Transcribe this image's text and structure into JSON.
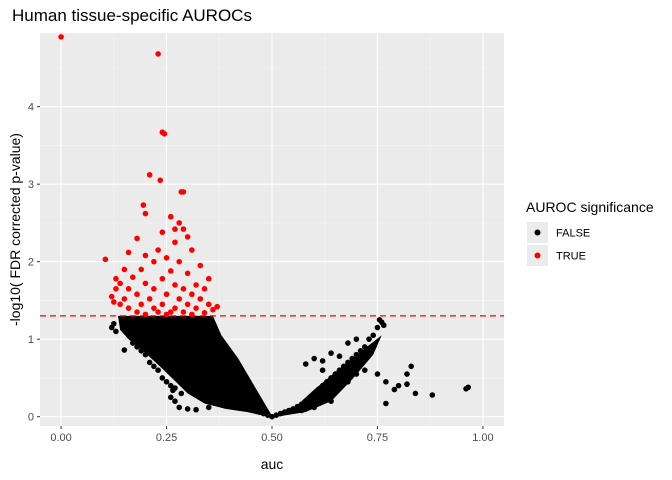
{
  "chart_data": {
    "type": "scatter",
    "title": "Human tissue-specific AUROCs",
    "xlabel": "auc",
    "ylabel": "-log10( FDR corrected p-value)",
    "xlim": [
      -0.05,
      1.05
    ],
    "ylim": [
      -0.12,
      4.95
    ],
    "x_ticks": [
      {
        "value": 0.0,
        "label": "0.00"
      },
      {
        "value": 0.25,
        "label": "0.25"
      },
      {
        "value": 0.5,
        "label": "0.50"
      },
      {
        "value": 0.75,
        "label": "0.75"
      },
      {
        "value": 1.0,
        "label": "1.00"
      }
    ],
    "y_ticks": [
      {
        "value": 0,
        "label": "0"
      },
      {
        "value": 1,
        "label": "1"
      },
      {
        "value": 2,
        "label": "2"
      },
      {
        "value": 3,
        "label": "3"
      },
      {
        "value": 4,
        "label": "4"
      }
    ],
    "grid": true,
    "threshold": {
      "y": 1.301,
      "color": "#ff0000",
      "style": "dashed"
    },
    "legend": {
      "title": "AUROC significance",
      "position": "right",
      "entries": [
        {
          "label": "FALSE",
          "color": "#000000"
        },
        {
          "label": "TRUE",
          "color": "#ff0000"
        }
      ]
    },
    "colors": {
      "panel": "#ebebeb",
      "grid_major": "#ffffff",
      "grid_minor": "#f5f5f5"
    },
    "series": [
      {
        "name": "FALSE",
        "color": "#000000",
        "points": [
          [
            0.12,
            1.15
          ],
          [
            0.125,
            1.2
          ],
          [
            0.13,
            1.1
          ],
          [
            0.15,
            0.86
          ],
          [
            0.16,
            1.05
          ],
          [
            0.17,
            0.95
          ],
          [
            0.18,
            0.9
          ],
          [
            0.19,
            0.85
          ],
          [
            0.2,
            0.8
          ],
          [
            0.21,
            0.7
          ],
          [
            0.22,
            0.65
          ],
          [
            0.23,
            0.6
          ],
          [
            0.24,
            0.5
          ],
          [
            0.25,
            0.45
          ],
          [
            0.26,
            0.4
          ],
          [
            0.27,
            0.37
          ],
          [
            0.265,
            0.34
          ],
          [
            0.285,
            0.3
          ],
          [
            0.28,
            0.12
          ],
          [
            0.3,
            0.1
          ],
          [
            0.32,
            0.09
          ],
          [
            0.35,
            0.12
          ],
          [
            0.27,
            0.2
          ],
          [
            0.26,
            0.25
          ],
          [
            0.22,
            1.2
          ],
          [
            0.24,
            1.1
          ],
          [
            0.26,
            1.05
          ],
          [
            0.28,
            0.95
          ],
          [
            0.3,
            0.85
          ],
          [
            0.31,
            0.75
          ],
          [
            0.32,
            0.7
          ],
          [
            0.33,
            0.6
          ],
          [
            0.34,
            0.55
          ],
          [
            0.35,
            0.5
          ],
          [
            0.36,
            0.45
          ],
          [
            0.37,
            0.4
          ],
          [
            0.38,
            0.35
          ],
          [
            0.39,
            0.3
          ],
          [
            0.4,
            0.25
          ],
          [
            0.41,
            0.22
          ],
          [
            0.42,
            0.2
          ],
          [
            0.43,
            0.17
          ],
          [
            0.44,
            0.14
          ],
          [
            0.45,
            0.12
          ],
          [
            0.46,
            0.09
          ],
          [
            0.47,
            0.06
          ],
          [
            0.48,
            0.04
          ],
          [
            0.49,
            0.02
          ],
          [
            0.5,
            0.0
          ],
          [
            0.51,
            0.02
          ],
          [
            0.52,
            0.04
          ],
          [
            0.53,
            0.06
          ],
          [
            0.54,
            0.08
          ],
          [
            0.55,
            0.1
          ],
          [
            0.56,
            0.13
          ],
          [
            0.57,
            0.16
          ],
          [
            0.58,
            0.2
          ],
          [
            0.59,
            0.25
          ],
          [
            0.6,
            0.3
          ],
          [
            0.61,
            0.35
          ],
          [
            0.62,
            0.4
          ],
          [
            0.63,
            0.45
          ],
          [
            0.64,
            0.5
          ],
          [
            0.65,
            0.55
          ],
          [
            0.66,
            0.6
          ],
          [
            0.67,
            0.65
          ],
          [
            0.68,
            0.7
          ],
          [
            0.69,
            0.75
          ],
          [
            0.7,
            0.8
          ],
          [
            0.71,
            0.85
          ],
          [
            0.72,
            0.9
          ],
          [
            0.73,
            1.0
          ],
          [
            0.74,
            1.05
          ],
          [
            0.75,
            1.15
          ],
          [
            0.755,
            1.25
          ],
          [
            0.76,
            1.22
          ],
          [
            0.765,
            1.18
          ],
          [
            0.73,
            0.85
          ],
          [
            0.72,
            0.78
          ],
          [
            0.75,
            0.55
          ],
          [
            0.77,
            0.45
          ],
          [
            0.79,
            0.35
          ],
          [
            0.8,
            0.4
          ],
          [
            0.82,
            0.55
          ],
          [
            0.83,
            0.65
          ],
          [
            0.82,
            0.42
          ],
          [
            0.84,
            0.3
          ],
          [
            0.77,
            0.17
          ],
          [
            0.88,
            0.28
          ],
          [
            0.96,
            0.36
          ],
          [
            0.965,
            0.38
          ],
          [
            0.6,
            0.75
          ],
          [
            0.62,
            0.72
          ],
          [
            0.58,
            0.68
          ],
          [
            0.64,
            0.82
          ],
          [
            0.66,
            0.78
          ],
          [
            0.68,
            0.95
          ],
          [
            0.7,
            1.0
          ],
          [
            0.69,
            0.62
          ],
          [
            0.67,
            0.55
          ],
          [
            0.63,
            0.28
          ],
          [
            0.64,
            0.2
          ],
          [
            0.6,
            0.12
          ],
          [
            0.57,
            0.08
          ],
          [
            0.65,
            0.35
          ],
          [
            0.68,
            0.45
          ],
          [
            0.62,
            0.6
          ],
          [
            0.7,
            0.55
          ],
          [
            0.72,
            0.6
          ]
        ]
      },
      {
        "name": "TRUE",
        "color": "#ff0000",
        "points": [
          [
            0.0,
            4.9
          ],
          [
            0.23,
            4.68
          ],
          [
            0.24,
            3.67
          ],
          [
            0.245,
            3.65
          ],
          [
            0.21,
            3.12
          ],
          [
            0.235,
            3.05
          ],
          [
            0.285,
            2.9
          ],
          [
            0.29,
            2.9
          ],
          [
            0.195,
            2.73
          ],
          [
            0.2,
            2.62
          ],
          [
            0.26,
            2.58
          ],
          [
            0.28,
            2.5
          ],
          [
            0.27,
            2.42
          ],
          [
            0.29,
            2.42
          ],
          [
            0.24,
            2.38
          ],
          [
            0.3,
            2.32
          ],
          [
            0.18,
            2.3
          ],
          [
            0.27,
            2.25
          ],
          [
            0.23,
            2.15
          ],
          [
            0.31,
            2.15
          ],
          [
            0.16,
            2.12
          ],
          [
            0.2,
            2.08
          ],
          [
            0.25,
            2.05
          ],
          [
            0.105,
            2.03
          ],
          [
            0.22,
            2.0
          ],
          [
            0.28,
            2.0
          ],
          [
            0.33,
            1.95
          ],
          [
            0.15,
            1.9
          ],
          [
            0.19,
            1.9
          ],
          [
            0.26,
            1.88
          ],
          [
            0.3,
            1.85
          ],
          [
            0.13,
            1.78
          ],
          [
            0.17,
            1.8
          ],
          [
            0.24,
            1.78
          ],
          [
            0.35,
            1.78
          ],
          [
            0.14,
            1.72
          ],
          [
            0.2,
            1.72
          ],
          [
            0.27,
            1.7
          ],
          [
            0.32,
            1.7
          ],
          [
            0.13,
            1.65
          ],
          [
            0.16,
            1.65
          ],
          [
            0.22,
            1.65
          ],
          [
            0.29,
            1.65
          ],
          [
            0.34,
            1.65
          ],
          [
            0.12,
            1.55
          ],
          [
            0.18,
            1.58
          ],
          [
            0.25,
            1.58
          ],
          [
            0.31,
            1.58
          ],
          [
            0.15,
            1.52
          ],
          [
            0.21,
            1.52
          ],
          [
            0.28,
            1.52
          ],
          [
            0.33,
            1.52
          ],
          [
            0.14,
            1.45
          ],
          [
            0.19,
            1.45
          ],
          [
            0.24,
            1.45
          ],
          [
            0.3,
            1.45
          ],
          [
            0.35,
            1.45
          ],
          [
            0.16,
            1.4
          ],
          [
            0.22,
            1.4
          ],
          [
            0.27,
            1.4
          ],
          [
            0.32,
            1.4
          ],
          [
            0.36,
            1.38
          ],
          [
            0.18,
            1.35
          ],
          [
            0.23,
            1.35
          ],
          [
            0.26,
            1.35
          ],
          [
            0.29,
            1.35
          ],
          [
            0.34,
            1.34
          ],
          [
            0.2,
            1.32
          ],
          [
            0.25,
            1.32
          ],
          [
            0.31,
            1.32
          ],
          [
            0.125,
            1.48
          ],
          [
            0.37,
            1.42
          ]
        ]
      }
    ]
  }
}
